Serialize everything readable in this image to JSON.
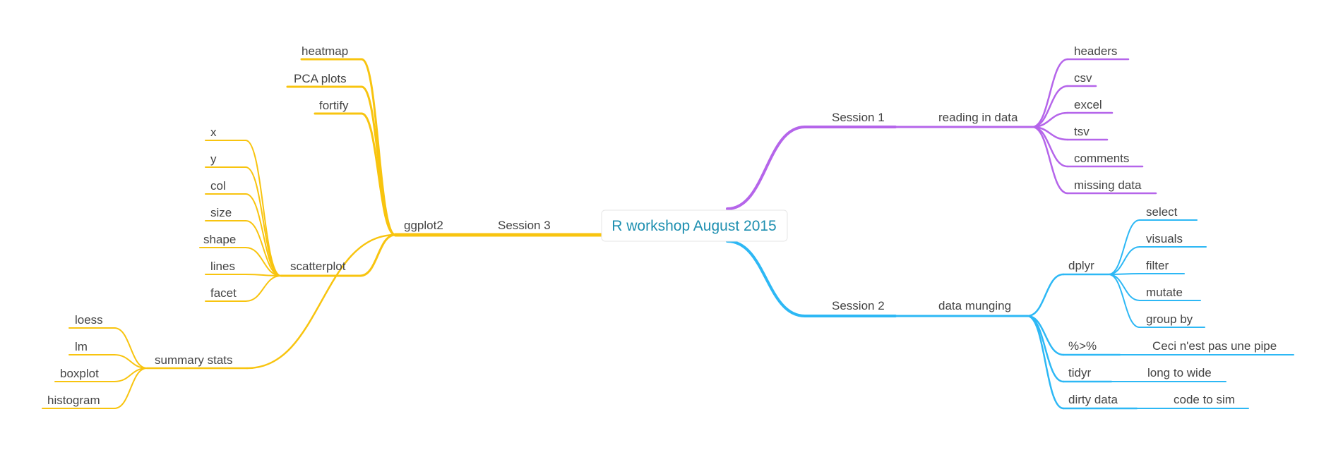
{
  "mindmap": {
    "root": "R workshop August 2015",
    "colors": {
      "session3": "#f8c40f",
      "session1": "#b565ea",
      "session2": "#2db8f5",
      "root_text": "#1d8fb0"
    },
    "session3": {
      "label": "Session 3",
      "ggplot2": {
        "label": "ggplot2",
        "leaves": [
          "heatmap",
          "PCA plots",
          "fortify"
        ],
        "scatterplot": {
          "label": "scatterplot",
          "leaves": [
            "x",
            "y",
            "col",
            "size",
            "shape",
            "lines",
            "facet"
          ]
        },
        "summary_stats": {
          "label": "summary stats",
          "leaves": [
            "loess",
            "lm",
            "boxplot",
            "histogram"
          ]
        }
      }
    },
    "session1": {
      "label": "Session 1",
      "reading": {
        "label": "reading in data",
        "leaves": [
          "headers",
          "csv",
          "excel",
          "tsv",
          "comments",
          "missing data"
        ]
      }
    },
    "session2": {
      "label": "Session 2",
      "munging": {
        "label": "data munging",
        "dplyr": {
          "label": "dplyr",
          "leaves": [
            "select",
            "visuals",
            "filter",
            "mutate",
            "group by"
          ]
        },
        "pipe": {
          "label": "%>%",
          "child": "Ceci n'est pas une pipe"
        },
        "tidyr": {
          "label": "tidyr",
          "child": "long to wide"
        },
        "dirty": {
          "label": "dirty data",
          "child": "code to sim"
        }
      }
    }
  }
}
